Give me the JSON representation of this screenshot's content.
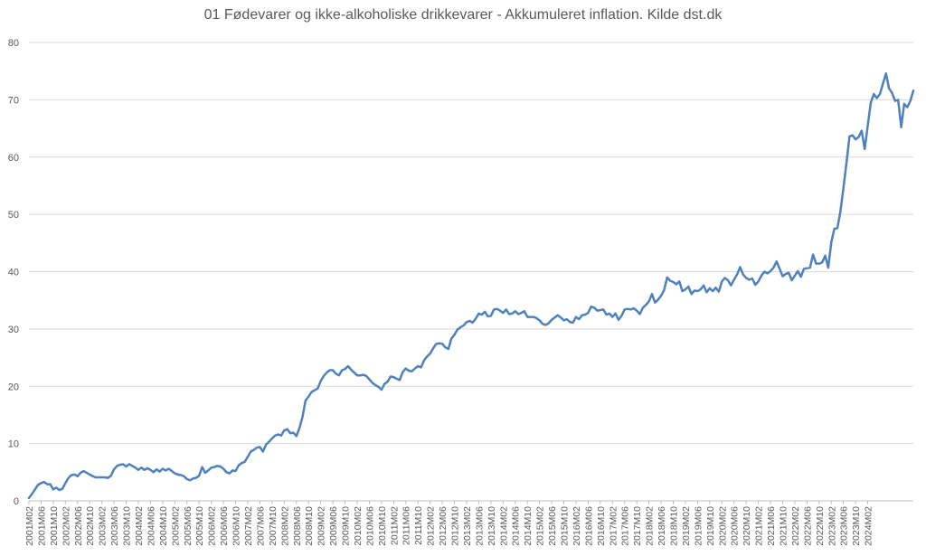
{
  "chart_data": {
    "type": "line",
    "title": "01 Fødevarer og ikke-alkoholiske drikkevarer - Akkumuleret inflation. Kilde dst.dk",
    "xlabel": "",
    "ylabel": "",
    "ylim": [
      0,
      80
    ],
    "yticks": [
      0,
      10,
      20,
      30,
      40,
      50,
      60,
      70,
      80
    ],
    "grid": true,
    "legend": "none",
    "series_color": "#4f81bd",
    "x_start": "2001M02",
    "x_tick_labels": [
      "2001M02",
      "2001M06",
      "2001M10",
      "2002M02",
      "2002M06",
      "2002M10",
      "2003M02",
      "2003M06",
      "2003M10",
      "2004M02",
      "2004M06",
      "2004M10",
      "2005M02",
      "2005M06",
      "2005M10",
      "2006M02",
      "2006M06",
      "2006M10",
      "2007M02",
      "2007M06",
      "2007M10",
      "2008M02",
      "2008M06",
      "2008M10",
      "2009M02",
      "2009M06",
      "2009M10",
      "2010M02",
      "2010M06",
      "2010M10",
      "2011M02",
      "2011M06",
      "2011M10",
      "2012M02",
      "2012M06",
      "2012M10",
      "2013M02",
      "2013M06",
      "2013M10",
      "2014M02",
      "2014M06",
      "2014M10",
      "2015M02",
      "2015M06",
      "2015M10",
      "2016M02",
      "2016M06",
      "2016M10",
      "2017M02",
      "2017M06",
      "2017M10",
      "2018M02",
      "2018M06",
      "2018M10",
      "2019M02",
      "2019M06",
      "2019M10",
      "2020M02",
      "2020M06",
      "2020M10",
      "2021M02",
      "2021M06",
      "2021M10",
      "2022M02",
      "2022M06",
      "2022M10",
      "2023M02",
      "2023M06",
      "2023M10",
      "2024M02"
    ],
    "series": [
      {
        "values": [
          0.5,
          1.2,
          2.0,
          2.8,
          3.1,
          3.3,
          2.9,
          2.9,
          2.0,
          2.3,
          1.9,
          2.1,
          3.1,
          4.0,
          4.5,
          4.6,
          4.3,
          4.9,
          5.2,
          4.9,
          4.6,
          4.3,
          4.1,
          4.1,
          4.1,
          4.1,
          4.0,
          4.4,
          5.5,
          6.1,
          6.3,
          6.4,
          6.0,
          6.4,
          6.1,
          5.8,
          5.4,
          5.8,
          5.4,
          5.7,
          5.4,
          5.0,
          5.5,
          5.1,
          5.6,
          5.3,
          5.6,
          5.2,
          4.8,
          4.6,
          4.5,
          4.3,
          3.8,
          3.6,
          3.9,
          4.0,
          4.4,
          5.9,
          4.9,
          5.3,
          5.8,
          5.9,
          6.1,
          6.0,
          5.6,
          5.0,
          4.8,
          5.3,
          5.2,
          6.2,
          6.6,
          6.8,
          7.7,
          8.6,
          8.9,
          9.3,
          9.4,
          8.6,
          9.8,
          10.3,
          10.9,
          11.4,
          11.6,
          11.4,
          12.3,
          12.5,
          11.8,
          11.9,
          11.3,
          12.7,
          14.6,
          17.5,
          18.2,
          19.0,
          19.3,
          19.6,
          20.9,
          21.8,
          22.4,
          22.8,
          22.8,
          22.2,
          21.9,
          22.8,
          23.0,
          23.5,
          22.9,
          22.4,
          21.9,
          21.9,
          22.0,
          21.8,
          21.2,
          20.6,
          20.2,
          19.9,
          19.4,
          20.4,
          20.8,
          21.7,
          21.6,
          21.3,
          21.1,
          22.5,
          23.1,
          22.7,
          22.6,
          23.1,
          23.5,
          23.3,
          24.5,
          25.2,
          25.7,
          26.6,
          27.4,
          27.5,
          27.4,
          26.8,
          26.5,
          28.3,
          29.0,
          29.9,
          30.3,
          30.6,
          31.2,
          31.4,
          31.1,
          31.8,
          32.7,
          32.5,
          33.0,
          32.2,
          32.3,
          33.4,
          33.5,
          33.2,
          32.8,
          33.4,
          32.6,
          32.7,
          33.1,
          32.6,
          32.8,
          33.1,
          32.1,
          32.1,
          32.1,
          31.9,
          31.5,
          30.9,
          30.7,
          31.0,
          31.6,
          32.0,
          32.4,
          32.0,
          31.5,
          31.7,
          31.2,
          31.1,
          32.1,
          31.7,
          32.4,
          32.5,
          32.8,
          33.9,
          33.7,
          33.2,
          33.3,
          33.4,
          32.5,
          32.7,
          32.1,
          32.7,
          31.6,
          32.3,
          33.4,
          33.5,
          33.4,
          33.6,
          33.2,
          32.6,
          33.7,
          34.2,
          34.8,
          36.1,
          34.6,
          35.1,
          35.8,
          36.8,
          39.0,
          38.4,
          38.2,
          37.8,
          38.3,
          36.6,
          36.9,
          37.4,
          36.1,
          36.7,
          36.6,
          36.9,
          37.6,
          36.4,
          37.1,
          36.6,
          37.2,
          36.5,
          38.3,
          38.9,
          38.5,
          37.6,
          38.6,
          39.5,
          40.8,
          39.5,
          38.9,
          38.6,
          38.8,
          37.7,
          38.3,
          39.3,
          40.0,
          39.7,
          40.1,
          40.7,
          41.8,
          40.5,
          39.2,
          39.6,
          39.8,
          38.5,
          39.3,
          40.1,
          39.1,
          40.5,
          40.6,
          40.7,
          43.0,
          41.4,
          41.4,
          41.6,
          42.8,
          40.7,
          45.1,
          47.5,
          47.6,
          50.5,
          54.6,
          59.0,
          63.6,
          63.8,
          63.1,
          63.5,
          64.6,
          61.4,
          65.5,
          69.5,
          71.0,
          70.3,
          71.0,
          72.8,
          74.6,
          72.0,
          71.2,
          69.8,
          70.0,
          65.2,
          69.3,
          68.7,
          69.8,
          71.6
        ]
      }
    ]
  }
}
